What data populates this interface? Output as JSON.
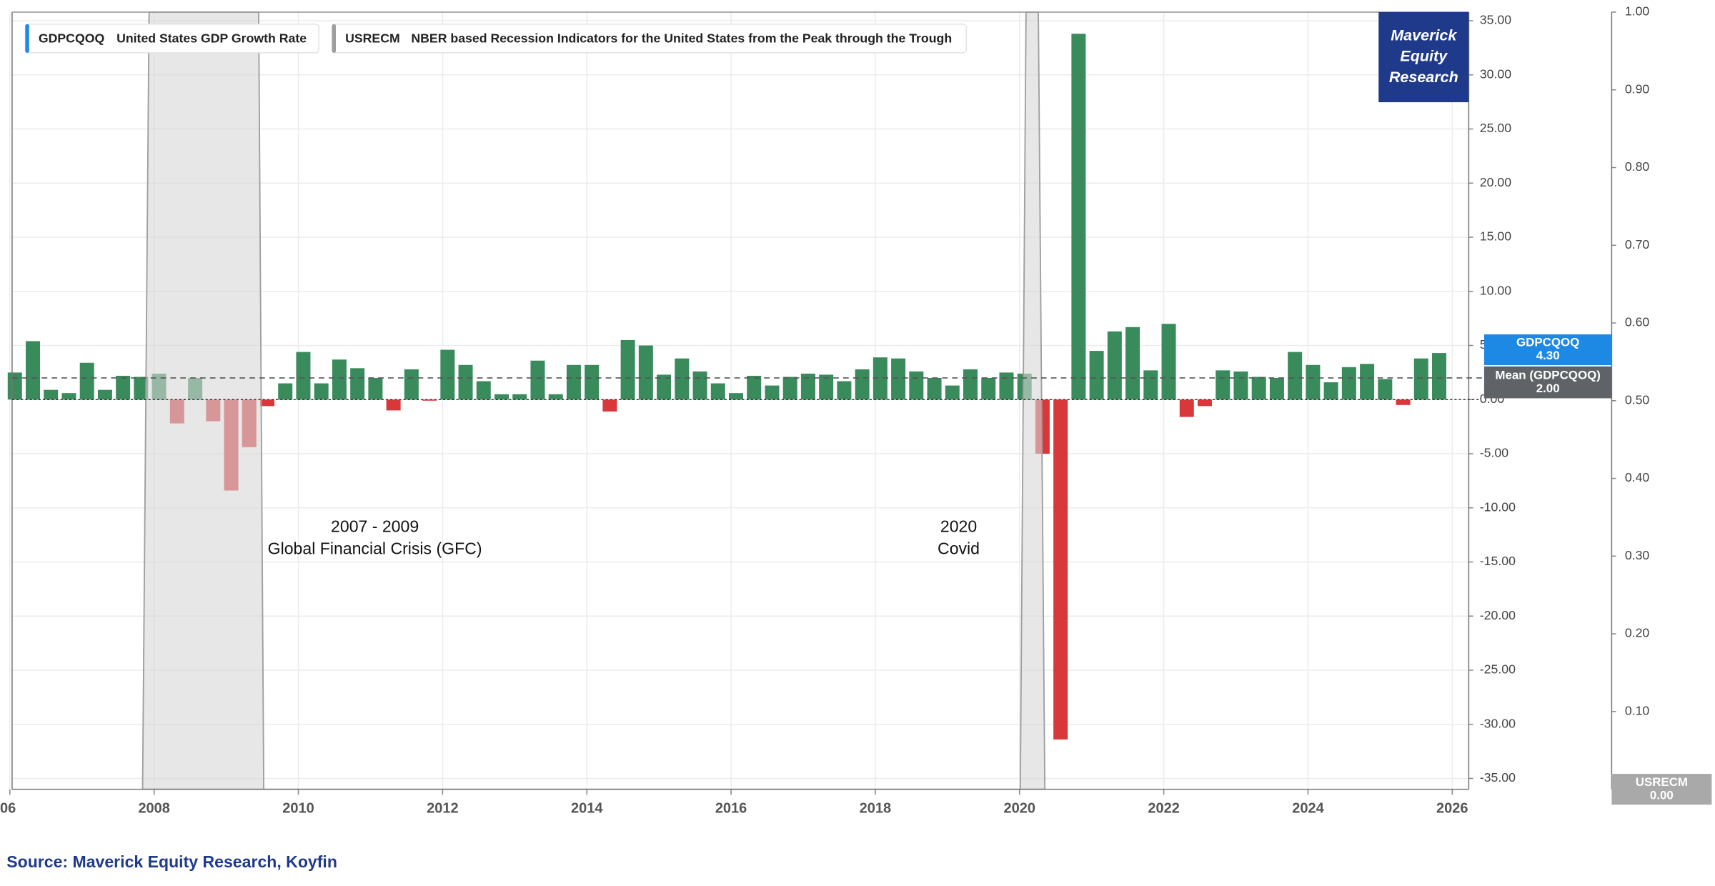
{
  "chart_data": {
    "type": "bar",
    "x": [
      2006,
      2006.25,
      2006.5,
      2006.75,
      2007,
      2007.25,
      2007.5,
      2007.75,
      2008,
      2008.25,
      2008.5,
      2008.75,
      2009,
      2009.25,
      2009.5,
      2009.75,
      2010,
      2010.25,
      2010.5,
      2010.75,
      2011,
      2011.25,
      2011.5,
      2011.75,
      2012,
      2012.25,
      2012.5,
      2012.75,
      2013,
      2013.25,
      2013.5,
      2013.75,
      2014,
      2014.25,
      2014.5,
      2014.75,
      2015,
      2015.25,
      2015.5,
      2015.75,
      2016,
      2016.25,
      2016.5,
      2016.75,
      2017,
      2017.25,
      2017.5,
      2017.75,
      2018,
      2018.25,
      2018.5,
      2018.75,
      2019,
      2019.25,
      2019.5,
      2019.75,
      2020,
      2020.25,
      2020.5,
      2020.75,
      2021,
      2021.25,
      2021.5,
      2021.75,
      2022,
      2022.25,
      2022.5,
      2022.75,
      2023,
      2023.25,
      2023.5,
      2023.75,
      2024,
      2024.25,
      2024.5,
      2024.75,
      2025,
      2025.25,
      2025.5,
      2025.75
    ],
    "series": [
      {
        "name": "GDPCQOQ",
        "description": "United States GDP Growth Rate",
        "color": "#3a8b5c",
        "negative_color": "#d8383a",
        "legend_color": "#1e88e5",
        "values": [
          2.5,
          5.4,
          0.9,
          0.6,
          3.4,
          0.9,
          2.2,
          2.1,
          2.4,
          -2.2,
          2.0,
          -2.0,
          -8.4,
          -4.4,
          -0.6,
          1.5,
          4.4,
          1.5,
          3.7,
          2.9,
          2.0,
          -1.0,
          2.8,
          -0.1,
          4.6,
          3.2,
          1.7,
          0.5,
          0.5,
          3.6,
          0.5,
          3.2,
          3.2,
          -1.1,
          5.5,
          5.0,
          2.3,
          3.8,
          2.6,
          1.5,
          0.6,
          2.2,
          1.3,
          2.1,
          2.4,
          2.3,
          1.7,
          2.8,
          3.9,
          3.8,
          2.6,
          2.0,
          1.3,
          2.8,
          2.0,
          2.5,
          2.4,
          -5.0,
          -31.4,
          33.8,
          4.5,
          6.3,
          6.7,
          2.7,
          7.0,
          -1.6,
          -0.6,
          2.7,
          2.6,
          2.1,
          2.0,
          4.4,
          3.2,
          1.6,
          3.0,
          3.3,
          1.9,
          -0.5,
          3.8,
          4.3
        ]
      },
      {
        "name": "USRECM",
        "description": "NBER based Recession Indicators for the United States from the Peak through the Trough",
        "type": "area",
        "axis": "y2",
        "color": "#9e9e9e",
        "x": [
          2007.84,
          2007.93,
          2009.45,
          2009.52,
          2020.01,
          2020.09,
          2020.26,
          2020.35
        ],
        "values": [
          0,
          1,
          1,
          0,
          0,
          1,
          1,
          0
        ]
      }
    ],
    "xlim": [
      2006,
      2026.2
    ],
    "xticks": [
      {
        "value": 2006,
        "label": "06"
      },
      2008,
      2010,
      2012,
      2014,
      2016,
      2018,
      2020,
      2022,
      2024,
      2026
    ],
    "ylim": [
      -36,
      35.8
    ],
    "yticks": [
      {
        "value": 35,
        "label": "35.00"
      },
      {
        "value": 30,
        "label": "30.00"
      },
      {
        "value": 25,
        "label": "25.00"
      },
      {
        "value": 20,
        "label": "20.00"
      },
      {
        "value": 15,
        "label": "15.00"
      },
      {
        "value": 10,
        "label": "10.00"
      },
      {
        "value": 5,
        "label": "5.00"
      },
      {
        "value": 0,
        "label": "0.00"
      },
      {
        "value": -5,
        "label": "-5.00"
      },
      {
        "value": -10,
        "label": "-10.00"
      },
      {
        "value": -15,
        "label": "-15.00"
      },
      {
        "value": -20,
        "label": "-20.00"
      },
      {
        "value": -25,
        "label": "-25.00"
      },
      {
        "value": -30,
        "label": "-30.00"
      },
      {
        "value": -35,
        "label": "-35.00"
      }
    ],
    "y2lim": [
      0,
      1
    ],
    "y2ticks": [
      {
        "value": 0,
        "label": "0.00"
      },
      {
        "value": 0.1,
        "label": "0.10"
      },
      {
        "value": 0.2,
        "label": "0.20"
      },
      {
        "value": 0.3,
        "label": "0.30"
      },
      {
        "value": 0.4,
        "label": "0.40"
      },
      {
        "value": 0.5,
        "label": "0.50"
      },
      {
        "value": 0.6,
        "label": "0.60"
      },
      {
        "value": 0.7,
        "label": "0.70"
      },
      {
        "value": 0.8,
        "label": "0.80"
      },
      {
        "value": 0.9,
        "label": "0.90"
      },
      {
        "value": 1,
        "label": "1.00"
      }
    ],
    "grid": true,
    "tags": [
      {
        "value": 4.3,
        "label": "4.30",
        "color": "#1e88e5"
      },
      {
        "name": "Mean (GDPCQOQ)",
        "value": 2.0,
        "label": "2.00",
        "color": "#5f6368"
      },
      {
        "value": 0,
        "label": "0.00",
        "color": "#a9a9a9"
      }
    ],
    "annotations": [
      {
        "lines": [
          "2007 - 2009",
          "Global Financial Crisis (GFC)"
        ]
      },
      {
        "lines": [
          "2020",
          "Covid"
        ]
      }
    ],
    "logo": [
      "Maverick",
      "Equity",
      "Research"
    ],
    "source": "Source: Maverick Equity Research, Koyfin"
  }
}
